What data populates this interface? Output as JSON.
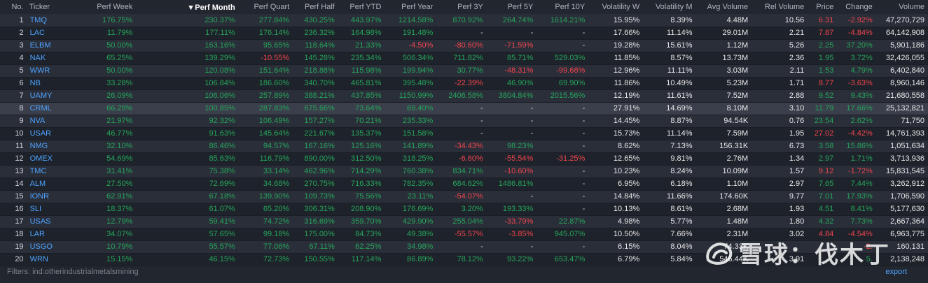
{
  "screener": {
    "columns": [
      {
        "label": "No.",
        "align": "r"
      },
      {
        "label": "Ticker",
        "align": "l"
      },
      {
        "label": "Perf Week",
        "align": "r"
      },
      {
        "label": "Perf Month",
        "align": "r",
        "sorted": true
      },
      {
        "label": "Perf Quart",
        "align": "r"
      },
      {
        "label": "Perf Half",
        "align": "r"
      },
      {
        "label": "Perf YTD",
        "align": "r"
      },
      {
        "label": "Perf Year",
        "align": "r"
      },
      {
        "label": "Perf 3Y",
        "align": "r"
      },
      {
        "label": "Perf 5Y",
        "align": "r"
      },
      {
        "label": "Perf 10Y",
        "align": "r"
      },
      {
        "label": "Volatility W",
        "align": "r"
      },
      {
        "label": "Volatility M",
        "align": "r"
      },
      {
        "label": "Avg Volume",
        "align": "r"
      },
      {
        "label": "Rel Volume",
        "align": "r"
      },
      {
        "label": "Price",
        "align": "r"
      },
      {
        "label": "Change",
        "align": "r"
      },
      {
        "label": "Volume",
        "align": "r"
      }
    ],
    "sort_indicator": "▾",
    "highlighted_row": 8,
    "rows": [
      {
        "no": "1",
        "ticker": "TMQ",
        "perf_week": "176.75%",
        "perf_month": "230.37%",
        "perf_quart": "277.84%",
        "perf_half": "430.25%",
        "perf_ytd": "443.97%",
        "perf_year": "1214.58%",
        "perf_3y": "870.92%",
        "perf_5y": "264.74%",
        "perf_10y": "1614.21%",
        "vol_w": "15.95%",
        "vol_m": "8.39%",
        "avg_volume": "4.48M",
        "rel_volume": "10.56",
        "price": "6.31",
        "change": "-2.92%",
        "volume": "47,270,729"
      },
      {
        "no": "2",
        "ticker": "LAC",
        "perf_week": "11.79%",
        "perf_month": "177.11%",
        "perf_quart": "176.14%",
        "perf_half": "236.32%",
        "perf_ytd": "164.98%",
        "perf_year": "191.48%",
        "perf_3y": "-",
        "perf_5y": "-",
        "perf_10y": "-",
        "vol_w": "17.66%",
        "vol_m": "11.14%",
        "avg_volume": "29.01M",
        "rel_volume": "2.21",
        "price": "7.87",
        "change": "-4.84%",
        "volume": "64,142,908"
      },
      {
        "no": "3",
        "ticker": "ELBM",
        "perf_week": "50.00%",
        "perf_month": "163.16%",
        "perf_quart": "95.65%",
        "perf_half": "118.64%",
        "perf_ytd": "21.33%",
        "perf_year": "-4.50%",
        "perf_3y": "-80.60%",
        "perf_5y": "-71.59%",
        "perf_10y": "-",
        "vol_w": "19.28%",
        "vol_m": "15.61%",
        "avg_volume": "1.12M",
        "rel_volume": "5.26",
        "price": "2.25",
        "change": "37.20%",
        "volume": "5,901,186"
      },
      {
        "no": "4",
        "ticker": "NAK",
        "perf_week": "65.25%",
        "perf_month": "139.29%",
        "perf_quart": "-10.55%",
        "perf_half": "145.28%",
        "perf_ytd": "235.34%",
        "perf_year": "506.34%",
        "perf_3y": "711.82%",
        "perf_5y": "85.71%",
        "perf_10y": "529.03%",
        "vol_w": "11.85%",
        "vol_m": "8.57%",
        "avg_volume": "13.73M",
        "rel_volume": "2.36",
        "price": "1.95",
        "change": "3.72%",
        "volume": "32,426,055"
      },
      {
        "no": "5",
        "ticker": "WWR",
        "perf_week": "50.00%",
        "perf_month": "120.08%",
        "perf_quart": "151.64%",
        "perf_half": "218.88%",
        "perf_ytd": "115.98%",
        "perf_year": "199.94%",
        "perf_3y": "30.77%",
        "perf_5y": "-48.31%",
        "perf_10y": "-99.68%",
        "vol_w": "12.96%",
        "vol_m": "11.11%",
        "avg_volume": "3.03M",
        "rel_volume": "2.11",
        "price": "1.53",
        "change": "4.79%",
        "volume": "6,402,840"
      },
      {
        "no": "6",
        "ticker": "NB",
        "perf_week": "33.28%",
        "perf_month": "106.84%",
        "perf_quart": "186.60%",
        "perf_half": "340.70%",
        "perf_ytd": "465.81%",
        "perf_year": "395.48%",
        "perf_3y": "-22.39%",
        "perf_5y": "46.90%",
        "perf_10y": "69.90%",
        "vol_w": "11.86%",
        "vol_m": "10.49%",
        "avg_volume": "5.23M",
        "rel_volume": "1.71",
        "price": "8.77",
        "change": "-3.63%",
        "volume": "8,960,146"
      },
      {
        "no": "7",
        "ticker": "UAMY",
        "perf_week": "26.09%",
        "perf_month": "106.06%",
        "perf_quart": "257.89%",
        "perf_half": "388.21%",
        "perf_ytd": "437.85%",
        "perf_year": "1150.99%",
        "perf_3y": "2406.58%",
        "perf_5y": "3804.84%",
        "perf_10y": "2015.56%",
        "vol_w": "12.19%",
        "vol_m": "11.61%",
        "avg_volume": "7.52M",
        "rel_volume": "2.88",
        "price": "9.52",
        "change": "9.43%",
        "volume": "21,680,558"
      },
      {
        "no": "8",
        "ticker": "CRML",
        "perf_week": "66.29%",
        "perf_month": "100.85%",
        "perf_quart": "287.83%",
        "perf_half": "675.66%",
        "perf_ytd": "73.64%",
        "perf_year": "69.40%",
        "perf_3y": "-",
        "perf_5y": "-",
        "perf_10y": "-",
        "vol_w": "27.91%",
        "vol_m": "14.69%",
        "avg_volume": "8.10M",
        "rel_volume": "3.10",
        "price": "11.79",
        "change": "17.66%",
        "volume": "25,132,821"
      },
      {
        "no": "9",
        "ticker": "NVA",
        "perf_week": "21.97%",
        "perf_month": "92.32%",
        "perf_quart": "106.49%",
        "perf_half": "157.27%",
        "perf_ytd": "70.21%",
        "perf_year": "235.33%",
        "perf_3y": "-",
        "perf_5y": "-",
        "perf_10y": "-",
        "vol_w": "14.45%",
        "vol_m": "8.87%",
        "avg_volume": "94.54K",
        "rel_volume": "0.76",
        "price": "23.54",
        "change": "2.62%",
        "volume": "71,750"
      },
      {
        "no": "10",
        "ticker": "USAR",
        "perf_week": "46.77%",
        "perf_month": "91.63%",
        "perf_quart": "145.64%",
        "perf_half": "221.67%",
        "perf_ytd": "135.37%",
        "perf_year": "151.58%",
        "perf_3y": "-",
        "perf_5y": "-",
        "perf_10y": "-",
        "vol_w": "15.73%",
        "vol_m": "11.14%",
        "avg_volume": "7.59M",
        "rel_volume": "1.95",
        "price": "27.02",
        "change": "-4.42%",
        "volume": "14,761,393"
      },
      {
        "no": "11",
        "ticker": "NMG",
        "perf_week": "32.10%",
        "perf_month": "86.46%",
        "perf_quart": "94.57%",
        "perf_half": "167.16%",
        "perf_ytd": "125.16%",
        "perf_year": "141.89%",
        "perf_3y": "-34.43%",
        "perf_5y": "98.23%",
        "perf_10y": "-",
        "vol_w": "8.62%",
        "vol_m": "7.13%",
        "avg_volume": "156.31K",
        "rel_volume": "6.73",
        "price": "3.58",
        "change": "15.86%",
        "volume": "1,051,634"
      },
      {
        "no": "12",
        "ticker": "OMEX",
        "perf_week": "54.69%",
        "perf_month": "85.63%",
        "perf_quart": "116.79%",
        "perf_half": "890.00%",
        "perf_ytd": "312.50%",
        "perf_year": "318.25%",
        "perf_3y": "-6.60%",
        "perf_5y": "-55.54%",
        "perf_10y": "-31.25%",
        "vol_w": "12.65%",
        "vol_m": "9.81%",
        "avg_volume": "2.76M",
        "rel_volume": "1.34",
        "price": "2.97",
        "change": "1.71%",
        "volume": "3,713,936"
      },
      {
        "no": "13",
        "ticker": "TMC",
        "perf_week": "31.41%",
        "perf_month": "75.38%",
        "perf_quart": "33.14%",
        "perf_half": "462.96%",
        "perf_ytd": "714.29%",
        "perf_year": "760.38%",
        "perf_3y": "834.71%",
        "perf_5y": "-10.60%",
        "perf_10y": "-",
        "vol_w": "10.23%",
        "vol_m": "8.24%",
        "avg_volume": "10.09M",
        "rel_volume": "1.57",
        "price": "9.12",
        "change": "-1.72%",
        "volume": "15,831,545"
      },
      {
        "no": "14",
        "ticker": "ALM",
        "perf_week": "27.50%",
        "perf_month": "72.69%",
        "perf_quart": "34.68%",
        "perf_half": "270.75%",
        "perf_ytd": "716.33%",
        "perf_year": "782.35%",
        "perf_3y": "684.62%",
        "perf_5y": "1486.81%",
        "perf_10y": "-",
        "vol_w": "6.95%",
        "vol_m": "6.18%",
        "avg_volume": "1.10M",
        "rel_volume": "2.97",
        "price": "7.65",
        "change": "7.44%",
        "volume": "3,262,912"
      },
      {
        "no": "15",
        "ticker": "IONR",
        "perf_week": "62.91%",
        "perf_month": "67.18%",
        "perf_quart": "139.90%",
        "perf_half": "109.73%",
        "perf_ytd": "75.56%",
        "perf_year": "23.11%",
        "perf_3y": "-54.07%",
        "perf_5y": "-",
        "perf_10y": "-",
        "vol_w": "14.84%",
        "vol_m": "11.66%",
        "avg_volume": "174.60K",
        "rel_volume": "9.77",
        "price": "7.01",
        "change": "17.93%",
        "volume": "1,706,590"
      },
      {
        "no": "16",
        "ticker": "SLI",
        "perf_week": "18.37%",
        "perf_month": "61.07%",
        "perf_quart": "65.20%",
        "perf_half": "306.31%",
        "perf_ytd": "208.90%",
        "perf_year": "176.69%",
        "perf_3y": "3.20%",
        "perf_5y": "193.33%",
        "perf_10y": "-",
        "vol_w": "10.13%",
        "vol_m": "8.61%",
        "avg_volume": "2.68M",
        "rel_volume": "1.93",
        "price": "4.51",
        "change": "8.41%",
        "volume": "5,177,630"
      },
      {
        "no": "17",
        "ticker": "USAS",
        "perf_week": "12.79%",
        "perf_month": "59.41%",
        "perf_quart": "74.72%",
        "perf_half": "316.69%",
        "perf_ytd": "359.70%",
        "perf_year": "429.90%",
        "perf_3y": "255.04%",
        "perf_5y": "-33.79%",
        "perf_10y": "22.87%",
        "vol_w": "4.98%",
        "vol_m": "5.77%",
        "avg_volume": "1.48M",
        "rel_volume": "1.80",
        "price": "4.32",
        "change": "7.73%",
        "volume": "2,667,364"
      },
      {
        "no": "18",
        "ticker": "LAR",
        "perf_week": "34.07%",
        "perf_month": "57.65%",
        "perf_quart": "99.18%",
        "perf_half": "175.00%",
        "perf_ytd": "84.73%",
        "perf_year": "49.38%",
        "perf_3y": "-55.57%",
        "perf_5y": "-3.85%",
        "perf_10y": "945.07%",
        "vol_w": "10.50%",
        "vol_m": "7.66%",
        "avg_volume": "2.31M",
        "rel_volume": "3.02",
        "price": "4.84",
        "change": "-4.54%",
        "volume": "6,963,775"
      },
      {
        "no": "19",
        "ticker": "USGO",
        "perf_week": "10.79%",
        "perf_month": "55.57%",
        "perf_quart": "77.06%",
        "perf_half": "67.11%",
        "perf_ytd": "62.25%",
        "perf_year": "34.98%",
        "perf_3y": "-",
        "perf_5y": "-",
        "perf_10y": "-",
        "vol_w": "6.15%",
        "vol_m": "8.04%",
        "avg_volume": "74.33K",
        "rel_volume": "",
        "price": "",
        "change": "-2.",
        "volume": "160,131"
      },
      {
        "no": "20",
        "ticker": "WRN",
        "perf_week": "15.15%",
        "perf_month": "46.15%",
        "perf_quart": "72.73%",
        "perf_half": "150.55%",
        "perf_ytd": "117.14%",
        "perf_year": "86.89%",
        "perf_3y": "78.12%",
        "perf_5y": "93.22%",
        "perf_10y": "653.47%",
        "vol_w": "6.79%",
        "vol_m": "5.84%",
        "avg_volume": "546.44K",
        "rel_volume": "3.91",
        "price": "",
        "change": "5.",
        "volume": "2,138,248"
      }
    ]
  },
  "footer": {
    "filters_label": "Filters:",
    "filters_value": "ind:otherindustrialmetalsmining",
    "export_label": "export"
  },
  "watermark": {
    "text": "雪球：伐木丁"
  },
  "colors": {
    "positive": "#26a65b",
    "negative": "#f0454d",
    "ticker": "#4da3ff",
    "row_odd": "#2a2e39",
    "row_even": "#1e222a",
    "row_highlight": "#3a3f4b"
  }
}
